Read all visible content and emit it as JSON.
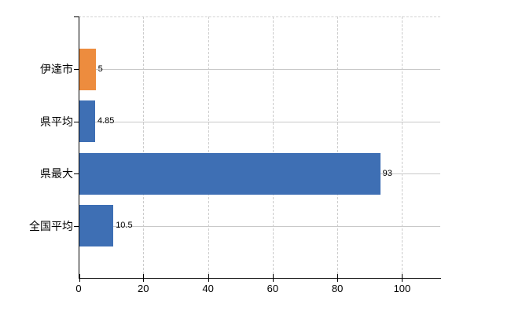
{
  "chart_data": {
    "type": "bar",
    "orientation": "horizontal",
    "title": "",
    "xlabel": "",
    "ylabel": "",
    "categories": [
      "伊達市",
      "県平均",
      "県最大",
      "全国平均"
    ],
    "values": [
      5,
      4.85,
      93,
      10.5
    ],
    "value_labels": [
      "5",
      "4.85",
      "93",
      "10.5"
    ],
    "bar_colors": [
      "#ED8C3E",
      "#3E6FB4",
      "#3E6FB4",
      "#3E6FB4"
    ],
    "x_ticks": [
      0,
      20,
      40,
      60,
      80,
      100
    ],
    "x_tick_labels": [
      "0",
      "20",
      "40",
      "60",
      "80",
      "100"
    ],
    "xlim": [
      0,
      111.8
    ],
    "grid": {
      "vertical": "dashed",
      "horizontal": "solid",
      "color": "#cccccc",
      "top_border": "dashed"
    },
    "legend": "none",
    "colors": {
      "axis": "#000000",
      "text": "#000000",
      "background": "#ffffff",
      "accent_orange": "#ED8C3E",
      "accent_blue": "#3E6FB4"
    }
  }
}
